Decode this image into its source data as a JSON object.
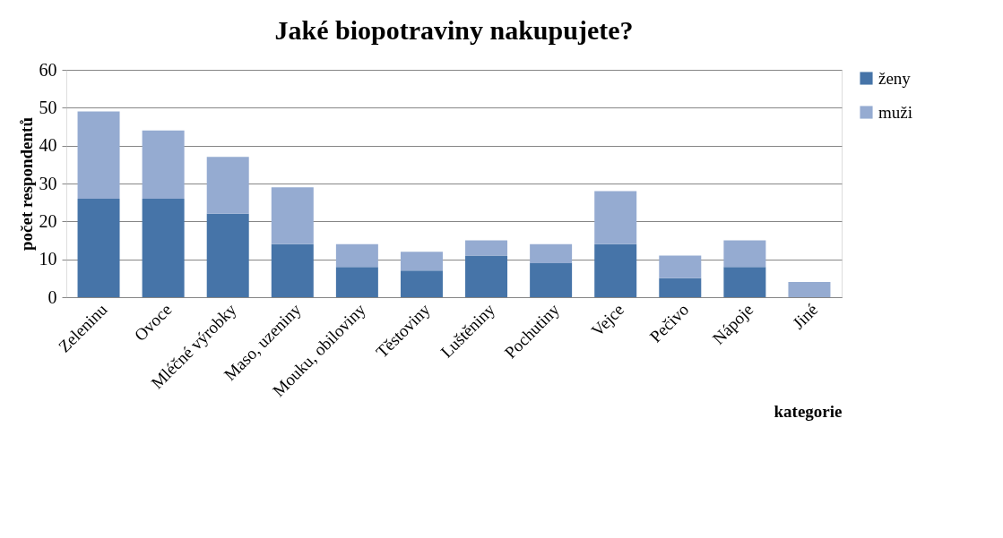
{
  "chart_data": {
    "type": "bar",
    "title": "Jaké biopotraviny nakupujete?",
    "xlabel": "kategorie",
    "ylabel": "počet respondentů",
    "categories": [
      "Zeleninu",
      "Ovoce",
      "Mléčné výrobky",
      "Maso, uzeniny",
      "Mouku, obiloviny",
      "Těstoviny",
      "Luštěniny",
      "Pochutiny",
      "Vejce",
      "Pečivo",
      "Nápoje",
      "Jiné"
    ],
    "series": [
      {
        "name": "ženy",
        "color": "#4674a8",
        "values": [
          26,
          26,
          22,
          14,
          8,
          7,
          11,
          9,
          14,
          5,
          8,
          0
        ]
      },
      {
        "name": "muži",
        "color": "#95abd1",
        "values": [
          23,
          18,
          15,
          15,
          6,
          5,
          4,
          5,
          14,
          6,
          7,
          4
        ]
      }
    ],
    "stacked": true,
    "ylim": [
      0,
      60
    ],
    "yticks": [
      0,
      10,
      20,
      30,
      40,
      50,
      60
    ],
    "grid": "y",
    "legend": "right"
  }
}
